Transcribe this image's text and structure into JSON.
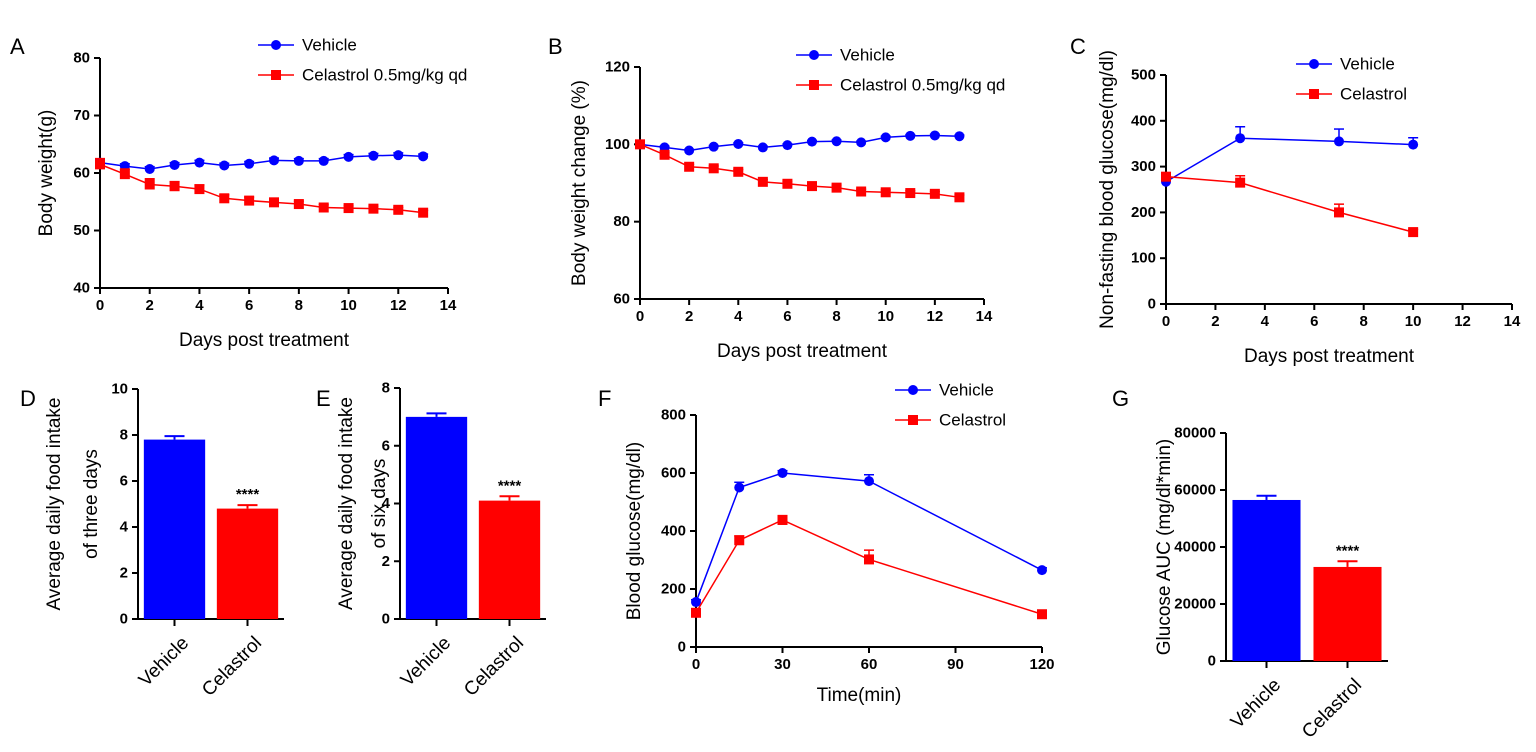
{
  "colors": {
    "vehicle": "#0000ff",
    "celastrol": "#ff0000",
    "axis": "#000000"
  },
  "panels": [
    {
      "letter": "A"
    },
    {
      "letter": "B"
    },
    {
      "letter": "C"
    },
    {
      "letter": "D"
    },
    {
      "letter": "E"
    },
    {
      "letter": "F"
    },
    {
      "letter": "G"
    }
  ],
  "chart_data": [
    {
      "panel": "A",
      "type": "line",
      "title": "",
      "xlabel": "Days post treatment",
      "ylabel": "Body weight(g)",
      "xlim": [
        0,
        14
      ],
      "ylim": [
        40,
        80
      ],
      "xticks": [
        0,
        2,
        4,
        6,
        8,
        10,
        12,
        14
      ],
      "yticks": [
        40,
        50,
        60,
        70,
        80
      ],
      "legend": "top-right",
      "x": [
        0,
        1,
        2,
        3,
        4,
        5,
        6,
        7,
        8,
        9,
        10,
        11,
        12,
        13
      ],
      "series": [
        {
          "name": "Vehicle",
          "color": "#0000ff",
          "marker": "circle",
          "values": [
            61.8,
            61.2,
            60.7,
            61.4,
            61.8,
            61.3,
            61.6,
            62.2,
            62.1,
            62.1,
            62.8,
            63.0,
            63.1,
            62.9
          ],
          "errors": [
            0.5,
            0.4,
            0.4,
            0.4,
            0.4,
            0.4,
            0.4,
            0.4,
            0.4,
            0.4,
            0.4,
            0.4,
            0.4,
            0.4
          ]
        },
        {
          "name": "Celastrol 0.5mg/kg qd",
          "color": "#ff0000",
          "marker": "square",
          "values": [
            61.5,
            59.8,
            58.0,
            57.7,
            57.2,
            55.6,
            55.2,
            54.9,
            54.6,
            54.0,
            53.9,
            53.8,
            53.6,
            53.1
          ],
          "errors": [
            1.0,
            0.9,
            1.0,
            0.8,
            0.7,
            0.6,
            0.6,
            0.5,
            0.5,
            0.5,
            0.4,
            0.4,
            0.4,
            0.4
          ]
        }
      ]
    },
    {
      "panel": "B",
      "type": "line",
      "title": "",
      "xlabel": "Days post treatment",
      "ylabel": "Body weight change (%)",
      "xlim": [
        0,
        14
      ],
      "ylim": [
        60,
        120
      ],
      "xticks": [
        0,
        2,
        4,
        6,
        8,
        10,
        12,
        14
      ],
      "yticks": [
        60,
        80,
        100,
        120
      ],
      "legend": "top-right",
      "x": [
        0,
        1,
        2,
        3,
        4,
        5,
        6,
        7,
        8,
        9,
        10,
        11,
        12,
        13
      ],
      "series": [
        {
          "name": "Vehicle",
          "color": "#0000ff",
          "marker": "circle",
          "values": [
            100,
            99.2,
            98.4,
            99.4,
            100.1,
            99.2,
            99.8,
            100.7,
            100.8,
            100.5,
            101.8,
            102.2,
            102.3,
            102.1
          ],
          "errors": [
            0.3,
            0.3,
            0.3,
            0.3,
            0.3,
            0.3,
            0.3,
            0.3,
            0.3,
            0.3,
            0.3,
            0.3,
            0.3,
            0.3
          ]
        },
        {
          "name": "Celastrol 0.5mg/kg qd",
          "color": "#ff0000",
          "marker": "square",
          "values": [
            100,
            97.3,
            94.2,
            93.8,
            92.9,
            90.3,
            89.8,
            89.2,
            88.8,
            87.8,
            87.6,
            87.4,
            87.2,
            86.3
          ],
          "errors": [
            0.5,
            0.6,
            0.6,
            0.6,
            0.6,
            0.6,
            0.6,
            0.6,
            0.6,
            0.6,
            0.6,
            0.6,
            0.6,
            0.6
          ]
        }
      ]
    },
    {
      "panel": "C",
      "type": "line",
      "title": "",
      "xlabel": "Days post treatment",
      "ylabel": "Non-fasting blood glucose(mg/dl)",
      "xlim": [
        0,
        14
      ],
      "ylim": [
        0,
        500
      ],
      "xticks": [
        0,
        2,
        4,
        6,
        8,
        10,
        12,
        14
      ],
      "yticks": [
        0,
        100,
        200,
        300,
        400,
        500
      ],
      "legend": "top-right",
      "x": [
        0,
        3,
        7,
        10
      ],
      "series": [
        {
          "name": "Vehicle",
          "color": "#0000ff",
          "marker": "circle",
          "values": [
            267,
            362,
            355,
            348
          ],
          "errors": [
            6,
            25,
            27,
            15
          ]
        },
        {
          "name": "Celastrol",
          "color": "#ff0000",
          "marker": "square",
          "values": [
            278,
            265,
            200,
            157
          ],
          "errors": [
            6,
            15,
            18,
            6
          ]
        }
      ]
    },
    {
      "panel": "D",
      "type": "bar",
      "title": "",
      "xlabel": "",
      "ylabel": "Average daily food intake of three days",
      "ylabel_lines": [
        "Average daily food intake",
        "of three days"
      ],
      "ylim": [
        0,
        10
      ],
      "yticks": [
        0,
        2,
        4,
        6,
        8,
        10
      ],
      "categories": [
        "Vehicle",
        "Celastrol"
      ],
      "values": [
        7.8,
        4.8
      ],
      "errors": [
        0.15,
        0.15
      ],
      "colors": [
        "#0000ff",
        "#ff0000"
      ],
      "annotations": [
        "",
        "****"
      ]
    },
    {
      "panel": "E",
      "type": "bar",
      "title": "",
      "xlabel": "",
      "ylabel": "Average daily food intake of six days",
      "ylabel_lines": [
        "Average daily food intake",
        "of six days"
      ],
      "ylim": [
        0,
        8
      ],
      "yticks": [
        0,
        2,
        4,
        6,
        8
      ],
      "categories": [
        "Vehicle",
        "Celastrol"
      ],
      "values": [
        7.0,
        4.1
      ],
      "errors": [
        0.12,
        0.15
      ],
      "colors": [
        "#0000ff",
        "#ff0000"
      ],
      "annotations": [
        "",
        "****"
      ]
    },
    {
      "panel": "F",
      "type": "line",
      "title": "",
      "xlabel": "Time(min)",
      "ylabel": "Blood glucose(mg/dl)",
      "xlim": [
        0,
        120
      ],
      "ylim": [
        0,
        800
      ],
      "xticks": [
        0,
        30,
        60,
        90,
        120
      ],
      "yticks": [
        0,
        200,
        400,
        600,
        800
      ],
      "legend": "top-right",
      "x": [
        0,
        15,
        30,
        60,
        120
      ],
      "series": [
        {
          "name": "Vehicle",
          "color": "#0000ff",
          "marker": "circle",
          "values": [
            155,
            550,
            600,
            572,
            265
          ],
          "errors": [
            8,
            18,
            8,
            22,
            8
          ]
        },
        {
          "name": "Celastrol",
          "color": "#ff0000",
          "marker": "square",
          "values": [
            118,
            368,
            438,
            302,
            113
          ],
          "errors": [
            8,
            15,
            15,
            32,
            8
          ]
        }
      ]
    },
    {
      "panel": "G",
      "type": "bar",
      "title": "",
      "xlabel": "",
      "ylabel": "Glucose AUC (mg/dl*min)",
      "ylim": [
        0,
        80000
      ],
      "yticks": [
        0,
        20000,
        40000,
        60000,
        80000
      ],
      "categories": [
        "Vehicle",
        "Celastrol"
      ],
      "values": [
        56500,
        33000
      ],
      "errors": [
        1500,
        2000
      ],
      "colors": [
        "#0000ff",
        "#ff0000"
      ],
      "annotations": [
        "",
        "****"
      ]
    }
  ]
}
